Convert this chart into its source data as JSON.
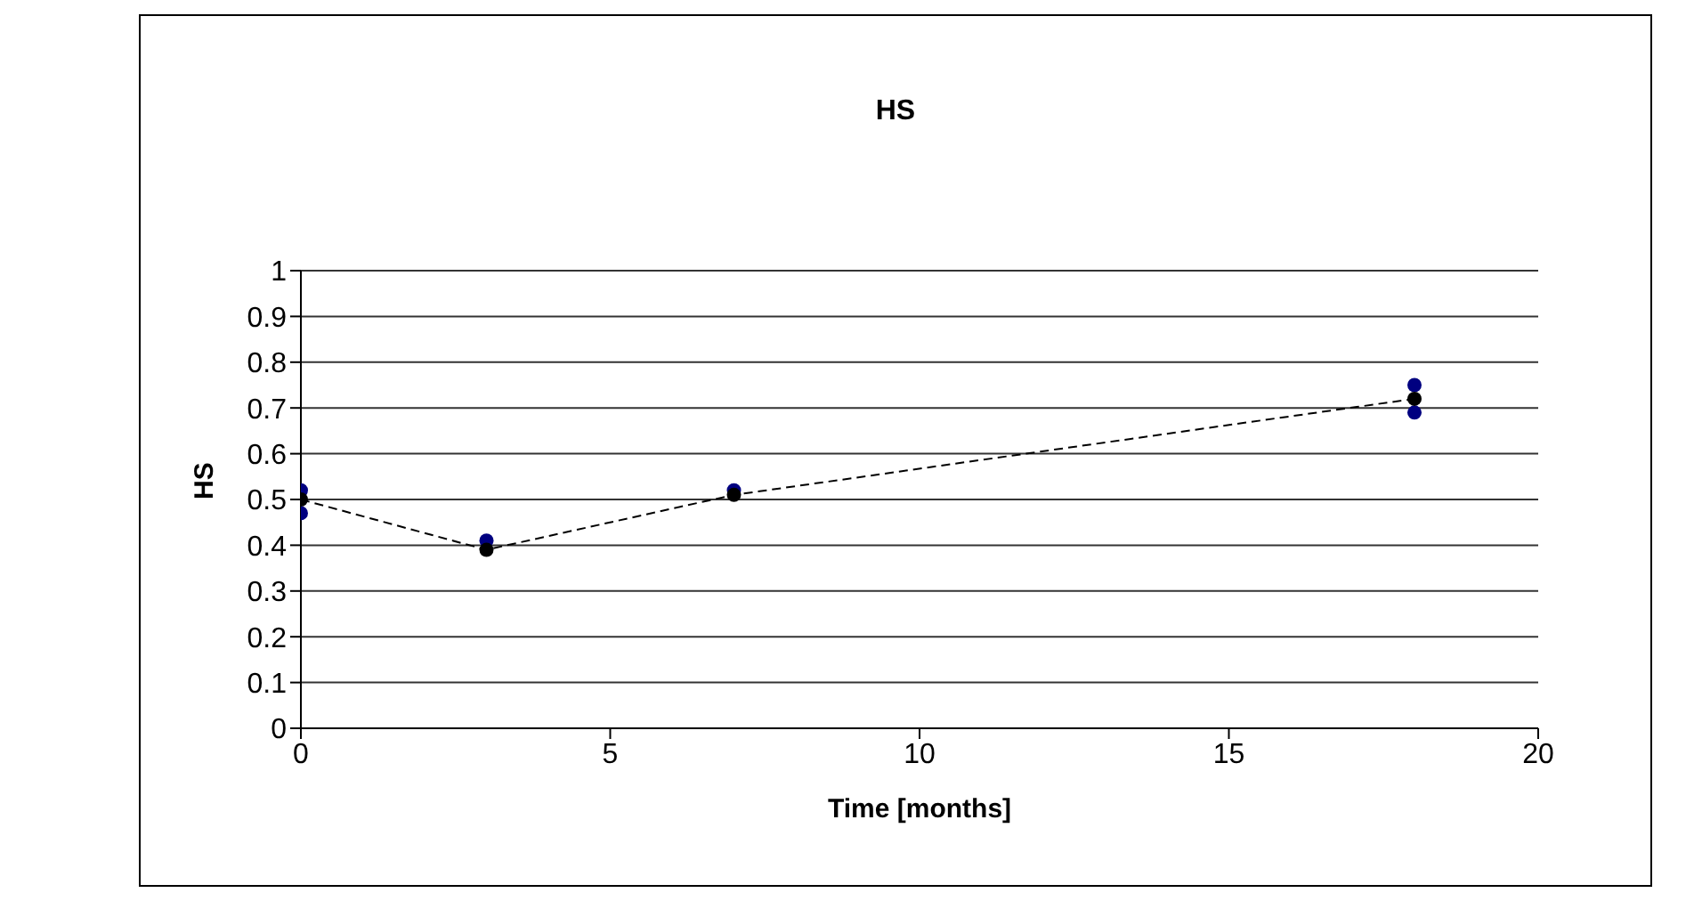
{
  "chart_data": {
    "type": "scatter",
    "title": "HS",
    "xlabel": "Time [months]",
    "ylabel": "HS",
    "xlim": [
      0,
      20
    ],
    "xticks": [
      0,
      5,
      10,
      15,
      20
    ],
    "ylim": [
      0,
      1
    ],
    "yticks": [
      0,
      0.1,
      0.2,
      0.3,
      0.4,
      0.5,
      0.6,
      0.7,
      0.8,
      0.9,
      1
    ],
    "grid": "y",
    "legend": false,
    "series": [
      {
        "color": "#000080",
        "marker": "circle",
        "x": [
          0,
          0,
          3,
          7,
          18,
          18
        ],
        "values": [
          0.52,
          0.47,
          0.41,
          0.52,
          0.75,
          0.69
        ]
      },
      {
        "type": "line",
        "color": "#000000",
        "marker": "circle",
        "line_style": "dashed",
        "x": [
          0,
          3,
          7,
          18
        ],
        "values": [
          0.5,
          0.39,
          0.51,
          0.72
        ]
      }
    ]
  }
}
